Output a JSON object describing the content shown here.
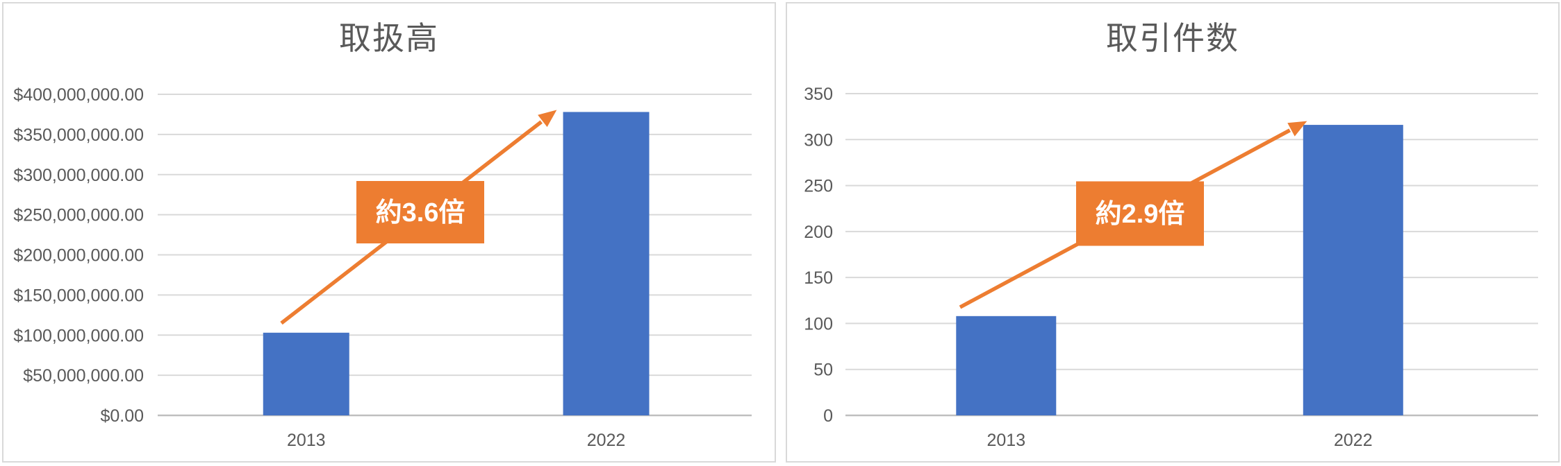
{
  "page": {
    "background": "#FFFFFF"
  },
  "chart_data": [
    {
      "type": "bar",
      "title": "取扱高",
      "categories": [
        "2013",
        "2022"
      ],
      "values": [
        103000000,
        378000000
      ],
      "series": [
        {
          "name": "取扱高",
          "values": [
            103000000,
            378000000
          ]
        }
      ],
      "xlabel": "",
      "ylabel": "",
      "ylim": [
        0,
        400000000
      ],
      "ytick_step": 50000000,
      "grid": true,
      "legend": "none",
      "y_ticks": [
        {
          "value": 400000000,
          "label": "$400,000,000.00"
        },
        {
          "value": 350000000,
          "label": "$350,000,000.00"
        },
        {
          "value": 300000000,
          "label": "$300,000,000.00"
        },
        {
          "value": 250000000,
          "label": "$250,000,000.00"
        },
        {
          "value": 200000000,
          "label": "$200,000,000.00"
        },
        {
          "value": 150000000,
          "label": "$150,000,000.00"
        },
        {
          "value": 100000000,
          "label": "$100,000,000.00"
        },
        {
          "value": 50000000,
          "label": "$50,000,000.00"
        },
        {
          "value": 0,
          "label": "$0.00"
        }
      ],
      "annotation": {
        "label": "約3.6倍",
        "box_color": "#ED7D31",
        "text_color": "#FFFFFF"
      },
      "colors": {
        "bar": "#4472C4",
        "accent": "#ED7D31",
        "gridline": "#D9D9D9",
        "axis_line": "#BFBFBF",
        "text": "#595959"
      }
    },
    {
      "type": "bar",
      "title": "取引件数",
      "categories": [
        "2013",
        "2022"
      ],
      "values": [
        108,
        316
      ],
      "series": [
        {
          "name": "取引件数",
          "values": [
            108,
            316
          ]
        }
      ],
      "xlabel": "",
      "ylabel": "",
      "ylim": [
        0,
        350
      ],
      "ytick_step": 50,
      "grid": true,
      "legend": "none",
      "y_ticks": [
        {
          "value": 350,
          "label": "350"
        },
        {
          "value": 300,
          "label": "300"
        },
        {
          "value": 250,
          "label": "250"
        },
        {
          "value": 200,
          "label": "200"
        },
        {
          "value": 150,
          "label": "150"
        },
        {
          "value": 100,
          "label": "100"
        },
        {
          "value": 50,
          "label": "50"
        },
        {
          "value": 0,
          "label": "0"
        }
      ],
      "annotation": {
        "label": "約2.9倍",
        "box_color": "#ED7D31",
        "text_color": "#FFFFFF"
      },
      "colors": {
        "bar": "#4472C4",
        "accent": "#ED7D31",
        "gridline": "#D9D9D9",
        "axis_line": "#BFBFBF",
        "text": "#595959"
      }
    }
  ]
}
